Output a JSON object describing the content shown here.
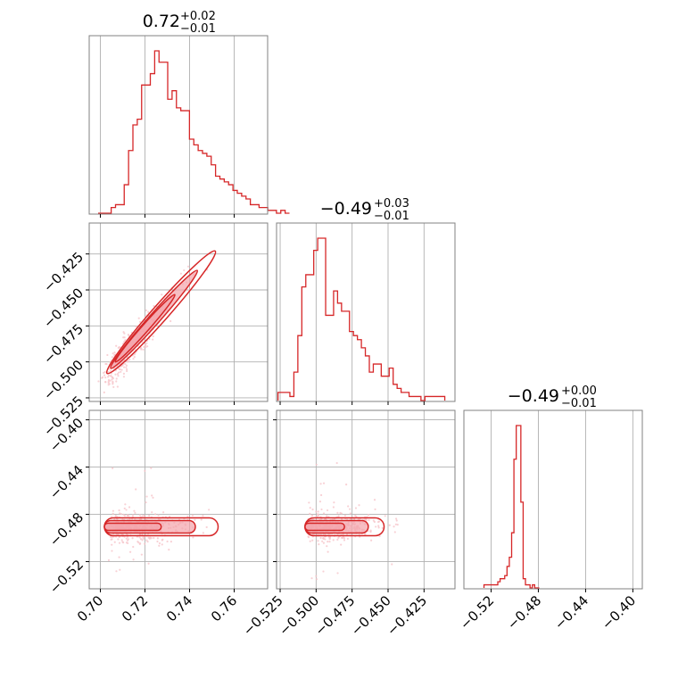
{
  "colors": {
    "accent": "#d62728",
    "fill": "#f4a3aa",
    "scatter": "#f6c6cb",
    "grid": "#b0b0b0",
    "frame": "#808080"
  },
  "chart_data": {
    "type": "corner",
    "grid": true,
    "params": [
      {
        "title_main": "0.72",
        "title_plus": "+0.02",
        "title_minus": "−0.01",
        "range": [
          0.695,
          0.775
        ],
        "ticks": [
          {
            "v": 0.7,
            "t": "0.70"
          },
          {
            "v": 0.72,
            "t": "0.72"
          },
          {
            "v": 0.74,
            "t": "0.74"
          },
          {
            "v": 0.76,
            "t": "0.76"
          }
        ]
      },
      {
        "title_main": "−0.49",
        "title_plus": "+0.03",
        "title_minus": "−0.01",
        "range": [
          -0.5275,
          -0.4035
        ],
        "ticks": [
          {
            "v": -0.525,
            "t": "−0.525"
          },
          {
            "v": -0.5,
            "t": "−0.500"
          },
          {
            "v": -0.475,
            "t": "−0.475"
          },
          {
            "v": -0.45,
            "t": "−0.450"
          },
          {
            "v": -0.425,
            "t": "−0.425"
          }
        ]
      },
      {
        "title_main": "−0.49",
        "title_plus": "+0.00",
        "title_minus": "−0.01",
        "range": [
          -0.543,
          -0.392
        ],
        "ticks": [
          {
            "v": -0.52,
            "t": "−0.52"
          },
          {
            "v": -0.48,
            "t": "−0.48"
          },
          {
            "v": -0.44,
            "t": "−0.44"
          },
          {
            "v": -0.4,
            "t": "−0.40"
          }
        ]
      }
    ],
    "histograms": [
      {
        "param": 0,
        "x_start": 0.699,
        "bin_width": 0.00195,
        "counts": [
          0,
          0,
          0,
          2,
          3,
          3,
          10,
          22,
          31,
          33,
          45,
          45,
          49,
          57,
          53,
          53,
          40,
          43,
          37,
          36,
          36,
          26,
          24,
          22,
          21,
          20,
          17,
          13,
          12,
          11,
          10,
          8,
          7,
          6,
          5,
          3,
          3,
          2,
          2,
          1,
          1,
          0,
          1,
          0
        ]
      },
      {
        "param": 1,
        "x_start": -0.5265,
        "bin_width": 0.00276,
        "counts": [
          2,
          2,
          2,
          1,
          7,
          16,
          28,
          31,
          31,
          37,
          40,
          40,
          21,
          21,
          27,
          24,
          22,
          22,
          17,
          16,
          15,
          13,
          11,
          7,
          9,
          9,
          6,
          6,
          8,
          4,
          3,
          2,
          2,
          1,
          1,
          1,
          0,
          1,
          1,
          1,
          1,
          1
        ]
      },
      {
        "param": 2,
        "x_start": -0.526,
        "bin_width": 0.00195,
        "counts": [
          1,
          1,
          1,
          1,
          1,
          1,
          2,
          3,
          3,
          4,
          7,
          10,
          18,
          42,
          53,
          53,
          28,
          3,
          1,
          1,
          0,
          1,
          0,
          0
        ]
      }
    ],
    "scatter_panels": [
      {
        "xparam": 0,
        "yparam": 1,
        "style": "diagonal-correlation"
      },
      {
        "xparam": 0,
        "yparam": 2,
        "style": "horizontal-band"
      },
      {
        "xparam": 1,
        "yparam": 2,
        "style": "horizontal-band"
      }
    ]
  }
}
